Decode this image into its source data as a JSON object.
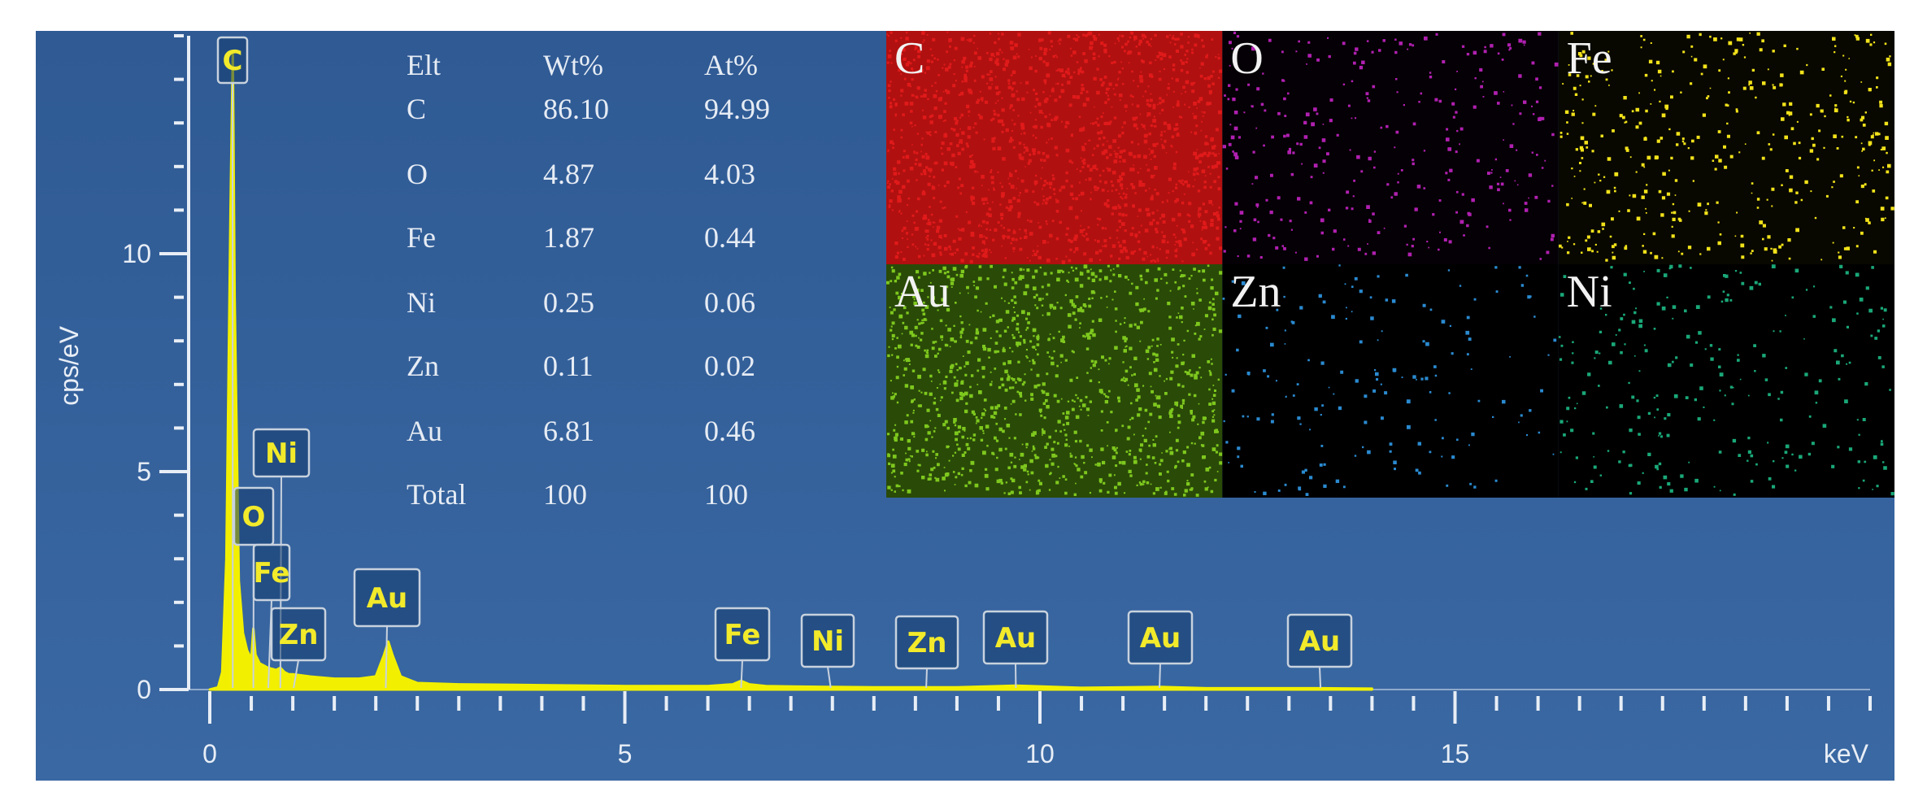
{
  "chart_data": {
    "type": "line",
    "xlabel": "keV",
    "ylabel": "cps/eV",
    "xlim": [
      0,
      20
    ],
    "ylim": [
      0,
      15
    ],
    "x_ticks": [
      0,
      5,
      10,
      15
    ],
    "y_ticks": [
      0,
      5,
      10
    ],
    "series": [
      {
        "x": [
          0.0,
          0.1,
          0.15,
          0.2,
          0.25,
          0.277,
          0.3,
          0.35,
          0.4,
          0.45,
          0.5,
          0.525,
          0.55,
          0.6,
          0.65,
          0.7,
          0.8,
          0.85,
          0.9,
          0.95,
          1.0,
          1.2,
          1.5,
          1.8,
          2.0,
          2.1,
          2.15,
          2.2,
          2.3,
          2.5,
          3.0,
          4.0,
          5.0,
          6.0,
          6.3,
          6.4,
          6.5,
          6.7,
          7.0,
          7.48,
          8.0,
          8.63,
          9.0,
          9.71,
          10.5,
          11.44,
          12.0,
          13.38,
          14.0,
          14.0
        ],
        "y": [
          0.0,
          0.05,
          0.4,
          3.0,
          11.0,
          14.6,
          9.0,
          2.5,
          1.3,
          0.9,
          0.7,
          1.4,
          0.8,
          0.6,
          0.55,
          0.5,
          0.45,
          0.5,
          0.4,
          0.35,
          0.35,
          0.3,
          0.25,
          0.25,
          0.3,
          0.8,
          1.1,
          0.8,
          0.3,
          0.15,
          0.12,
          0.1,
          0.08,
          0.08,
          0.12,
          0.2,
          0.12,
          0.08,
          0.07,
          0.06,
          0.05,
          0.05,
          0.05,
          0.09,
          0.04,
          0.06,
          0.03,
          0.03,
          0.02,
          0.0
        ]
      }
    ],
    "peak_labels": [
      {
        "label": "C",
        "energy": 0.277
      },
      {
        "label": "Ni",
        "energy": 0.85
      },
      {
        "label": "O",
        "energy": 0.525
      },
      {
        "label": "Fe",
        "energy": 0.705
      },
      {
        "label": "Zn",
        "energy": 1.01
      },
      {
        "label": "Au",
        "energy": 2.12
      },
      {
        "label": "Fe",
        "energy": 6.4
      },
      {
        "label": "Ni",
        "energy": 7.48
      },
      {
        "label": "Zn",
        "energy": 8.63
      },
      {
        "label": "Au",
        "energy": 9.71
      },
      {
        "label": "Au",
        "energy": 11.44
      },
      {
        "label": "Au",
        "energy": 13.38
      }
    ],
    "composition_table": {
      "headers": [
        "Elt",
        "Wt%",
        "At%"
      ],
      "rows": [
        [
          "C",
          "86.10",
          "94.99"
        ],
        [
          "O",
          "4.87",
          "4.03"
        ],
        [
          "Fe",
          "1.87",
          "0.44"
        ],
        [
          "Ni",
          "0.25",
          "0.06"
        ],
        [
          "Zn",
          "0.11",
          "0.02"
        ],
        [
          "Au",
          "6.81",
          "0.46"
        ],
        [
          "Total",
          "100",
          "100"
        ]
      ]
    },
    "element_maps": [
      {
        "label": "C",
        "color": "#e01a1a",
        "bg": "#b01010",
        "density": 1.0
      },
      {
        "label": "O",
        "color": "#b020b0",
        "bg": "#050005",
        "density": 0.22
      },
      {
        "label": "Fe",
        "color": "#f2e21a",
        "bg": "#080800",
        "density": 0.3
      },
      {
        "label": "Au",
        "color": "#7ec81e",
        "bg": "#2a4a08",
        "density": 0.8
      },
      {
        "label": "Zn",
        "color": "#2a8ad0",
        "bg": "#000000",
        "density": 0.12
      },
      {
        "label": "Ni",
        "color": "#1aa878",
        "bg": "#000000",
        "density": 0.18
      }
    ],
    "colors": {
      "panel_bg": "#35609a",
      "spectrum": "#f2f000",
      "text": "#e6ecf4"
    }
  }
}
